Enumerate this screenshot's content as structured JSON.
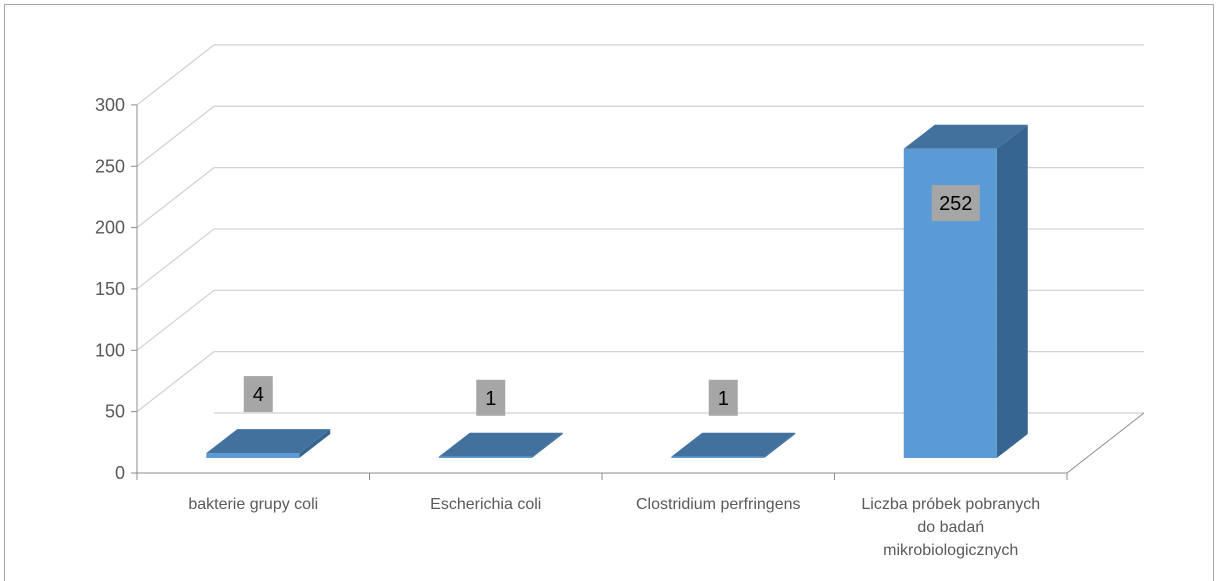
{
  "chart_data": {
    "type": "bar",
    "categories": [
      "bakterie grupy coli",
      "Escherichia coli",
      "Clostridium perfringens",
      "Liczba próbek pobranych do badań mikrobiologicznych"
    ],
    "category_label_lines": [
      [
        "bakterie grupy coli"
      ],
      [
        "Escherichia coli"
      ],
      [
        "Clostridium perfringens"
      ],
      [
        "Liczba próbek pobranych",
        "do badań",
        "mikrobiologicznych"
      ]
    ],
    "values": [
      4,
      1,
      1,
      252
    ],
    "data_labels": [
      "4",
      "1",
      "1",
      "252"
    ],
    "y_ticks": [
      0,
      50,
      100,
      150,
      200,
      250,
      300
    ],
    "ylim": [
      0,
      300
    ],
    "grid": true,
    "three_d": true,
    "title": "",
    "xlabel": "",
    "ylabel": "",
    "colors": {
      "bar_front": "#5b9bd5",
      "bar_top": "#41719c",
      "bar_side": "#376591",
      "grid": "#d0d0d0",
      "axis": "#8c8c8c",
      "label_box": "#a6a6a6",
      "text": "#595959",
      "border": "#a6a6a6"
    }
  }
}
